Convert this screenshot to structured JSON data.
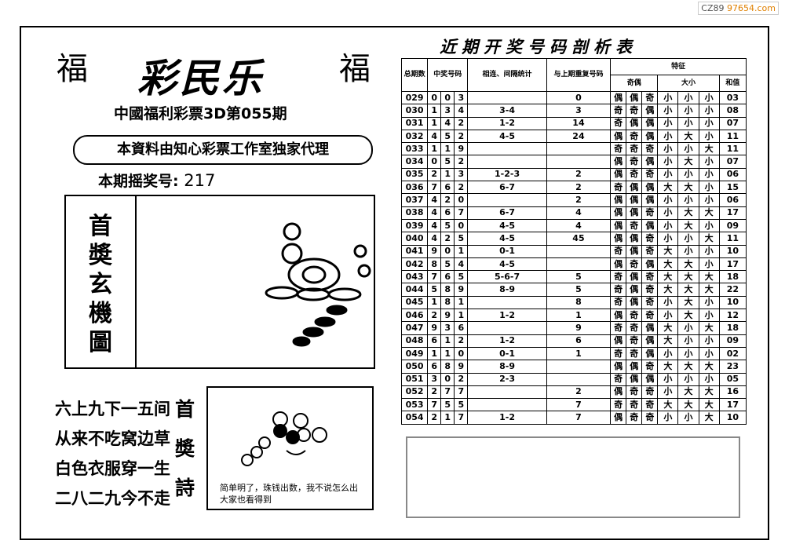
{
  "watermark": {
    "code": "CZ89",
    "site": "97654.com"
  },
  "header": {
    "fu_left": "福",
    "fu_right": "福",
    "title": "彩民乐",
    "issue": "中國福利彩票3D第055期",
    "agent": "本資料由知心彩票工作室独家代理",
    "draw_label": "本期摇奖号:",
    "draw_number": "217"
  },
  "puzzle": {
    "label": [
      "首",
      "奬",
      "玄",
      "機",
      "圖"
    ]
  },
  "poem": {
    "lines": [
      "六上九下一五间",
      "从来不吃窝边草",
      "白色衣服穿一生",
      "二八二九今不走"
    ],
    "label": [
      "首",
      "奬",
      "詩"
    ],
    "note": "简单明了，珠钱出数，我不说怎么出大家也看得到"
  },
  "table": {
    "title": "近期开奖号码剖析表",
    "headers": {
      "period": "总期数",
      "number": "中奖号码",
      "link": "相连、间隔统计",
      "repeat": "与上期重复号码",
      "feature": "特征",
      "odd_even": "奇偶",
      "big_small": "大小",
      "sum": "和值"
    },
    "rows": [
      {
        "period": "029",
        "number": [
          "0",
          "0",
          "3"
        ],
        "repeat": "0",
        "odd_even": [
          "偶",
          "偶",
          "奇"
        ],
        "big_small": [
          "小",
          "小",
          "小"
        ],
        "sum": "03"
      },
      {
        "period": "030",
        "number": [
          "1",
          "3",
          "4"
        ],
        "link": "3-4",
        "repeat": "3",
        "odd_even": [
          "奇",
          "奇",
          "偶"
        ],
        "big_small": [
          "小",
          "小",
          "小"
        ],
        "sum": "08"
      },
      {
        "period": "031",
        "number": [
          "1",
          "4",
          "2"
        ],
        "link": "1-2",
        "repeat": "14",
        "odd_even": [
          "奇",
          "偶",
          "偶"
        ],
        "big_small": [
          "小",
          "小",
          "小"
        ],
        "sum": "07"
      },
      {
        "period": "032",
        "number": [
          "4",
          "5",
          "2"
        ],
        "link": "4-5",
        "repeat": "24",
        "odd_even": [
          "偶",
          "奇",
          "偶"
        ],
        "big_small": [
          "小",
          "大",
          "小"
        ],
        "sum": "11"
      },
      {
        "period": "033",
        "number": [
          "1",
          "1",
          "9"
        ],
        "odd_even": [
          "奇",
          "奇",
          "奇"
        ],
        "big_small": [
          "小",
          "小",
          "大"
        ],
        "sum": "11"
      },
      {
        "period": "034",
        "number": [
          "0",
          "5",
          "2"
        ],
        "odd_even": [
          "偶",
          "奇",
          "偶"
        ],
        "big_small": [
          "小",
          "大",
          "小"
        ],
        "sum": "07"
      },
      {
        "period": "035",
        "number": [
          "2",
          "1",
          "3"
        ],
        "link": "1-2-3",
        "repeat": "2",
        "odd_even": [
          "偶",
          "奇",
          "奇"
        ],
        "big_small": [
          "小",
          "小",
          "小"
        ],
        "sum": "06"
      },
      {
        "period": "036",
        "number": [
          "7",
          "6",
          "2"
        ],
        "link": "6-7",
        "repeat": "2",
        "odd_even": [
          "奇",
          "偶",
          "偶"
        ],
        "big_small": [
          "大",
          "大",
          "小"
        ],
        "sum": "15"
      },
      {
        "period": "037",
        "number": [
          "4",
          "2",
          "0"
        ],
        "repeat": "2",
        "odd_even": [
          "偶",
          "偶",
          "偶"
        ],
        "big_small": [
          "小",
          "小",
          "小"
        ],
        "sum": "06"
      },
      {
        "period": "038",
        "number": [
          "4",
          "6",
          "7"
        ],
        "link": "6-7",
        "repeat": "4",
        "odd_even": [
          "偶",
          "偶",
          "奇"
        ],
        "big_small": [
          "小",
          "大",
          "大"
        ],
        "sum": "17"
      },
      {
        "period": "039",
        "number": [
          "4",
          "5",
          "0"
        ],
        "link": "4-5",
        "repeat": "4",
        "odd_even": [
          "偶",
          "奇",
          "偶"
        ],
        "big_small": [
          "小",
          "大",
          "小"
        ],
        "sum": "09"
      },
      {
        "period": "040",
        "number": [
          "4",
          "2",
          "5"
        ],
        "link": "4-5",
        "repeat": "45",
        "odd_even": [
          "偶",
          "偶",
          "奇"
        ],
        "big_small": [
          "小",
          "小",
          "大"
        ],
        "sum": "11"
      },
      {
        "period": "041",
        "number": [
          "9",
          "0",
          "1"
        ],
        "link": "0-1",
        "odd_even": [
          "奇",
          "偶",
          "奇"
        ],
        "big_small": [
          "大",
          "小",
          "小"
        ],
        "sum": "10"
      },
      {
        "period": "042",
        "number": [
          "8",
          "5",
          "4"
        ],
        "link": "4-5",
        "odd_even": [
          "偶",
          "奇",
          "偶"
        ],
        "big_small": [
          "大",
          "大",
          "小"
        ],
        "sum": "17"
      },
      {
        "period": "043",
        "number": [
          "7",
          "6",
          "5"
        ],
        "link": "5-6-7",
        "repeat": "5",
        "odd_even": [
          "奇",
          "偶",
          "奇"
        ],
        "big_small": [
          "大",
          "大",
          "大"
        ],
        "sum": "18"
      },
      {
        "period": "044",
        "number": [
          "5",
          "8",
          "9"
        ],
        "link": "8-9",
        "repeat": "5",
        "odd_even": [
          "奇",
          "偶",
          "奇"
        ],
        "big_small": [
          "大",
          "大",
          "大"
        ],
        "sum": "22"
      },
      {
        "period": "045",
        "number": [
          "1",
          "8",
          "1"
        ],
        "repeat": "8",
        "odd_even": [
          "奇",
          "偶",
          "奇"
        ],
        "big_small": [
          "小",
          "大",
          "小"
        ],
        "sum": "10"
      },
      {
        "period": "046",
        "number": [
          "2",
          "9",
          "1"
        ],
        "link": "1-2",
        "repeat": "1",
        "odd_even": [
          "偶",
          "奇",
          "奇"
        ],
        "big_small": [
          "小",
          "大",
          "小"
        ],
        "sum": "12"
      },
      {
        "period": "047",
        "number": [
          "9",
          "3",
          "6"
        ],
        "repeat": "9",
        "odd_even": [
          "奇",
          "奇",
          "偶"
        ],
        "big_small": [
          "大",
          "小",
          "大"
        ],
        "sum": "18"
      },
      {
        "period": "048",
        "number": [
          "6",
          "1",
          "2"
        ],
        "link": "1-2",
        "repeat": "6",
        "odd_even": [
          "偶",
          "奇",
          "偶"
        ],
        "big_small": [
          "大",
          "小",
          "小"
        ],
        "sum": "09"
      },
      {
        "period": "049",
        "number": [
          "1",
          "1",
          "0"
        ],
        "link": "0-1",
        "repeat": "1",
        "odd_even": [
          "奇",
          "奇",
          "偶"
        ],
        "big_small": [
          "小",
          "小",
          "小"
        ],
        "sum": "02"
      },
      {
        "period": "050",
        "number": [
          "6",
          "8",
          "9"
        ],
        "link": "8-9",
        "odd_even": [
          "偶",
          "偶",
          "奇"
        ],
        "big_small": [
          "大",
          "大",
          "大"
        ],
        "sum": "23"
      },
      {
        "period": "051",
        "number": [
          "3",
          "0",
          "2"
        ],
        "link": "2-3",
        "odd_even": [
          "奇",
          "偶",
          "偶"
        ],
        "big_small": [
          "小",
          "小",
          "小"
        ],
        "sum": "05"
      },
      {
        "period": "052",
        "number": [
          "2",
          "7",
          "7"
        ],
        "repeat": "2",
        "odd_even": [
          "偶",
          "奇",
          "奇"
        ],
        "big_small": [
          "小",
          "大",
          "大"
        ],
        "sum": "16"
      },
      {
        "period": "053",
        "number": [
          "7",
          "5",
          "5"
        ],
        "repeat": "7",
        "odd_even": [
          "奇",
          "奇",
          "奇"
        ],
        "big_small": [
          "大",
          "大",
          "大"
        ],
        "sum": "17"
      },
      {
        "period": "054",
        "number": [
          "2",
          "1",
          "7"
        ],
        "link": "1-2",
        "repeat": "7",
        "odd_even": [
          "偶",
          "奇",
          "奇"
        ],
        "big_small": [
          "小",
          "小",
          "大"
        ],
        "sum": "10"
      }
    ]
  }
}
